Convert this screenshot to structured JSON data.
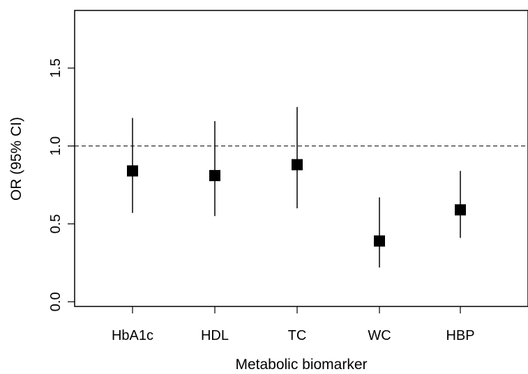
{
  "chart_data": {
    "type": "scatter",
    "subtype": "forest-plot-with-error-bars",
    "xlabel": "Metabolic biomarker",
    "ylabel": "OR (95% CI)",
    "categories": [
      "HbA1c",
      "HDL",
      "TC",
      "WC",
      "HBP"
    ],
    "series": [
      {
        "values": [
          0.84,
          0.81,
          0.88,
          0.39,
          0.59
        ],
        "lower": [
          0.57,
          0.55,
          0.6,
          0.22,
          0.41
        ],
        "upper": [
          1.18,
          1.16,
          1.25,
          0.67,
          0.84
        ]
      }
    ],
    "yticks": [
      "0.0",
      "0.5",
      "1.0",
      "1.5"
    ],
    "ylim": [
      -0.03,
      1.87
    ],
    "reference_line": {
      "y": 1.0,
      "style": "dashed"
    },
    "grid": false,
    "legend": "none",
    "marker": "filled-square",
    "color": "#000000"
  }
}
